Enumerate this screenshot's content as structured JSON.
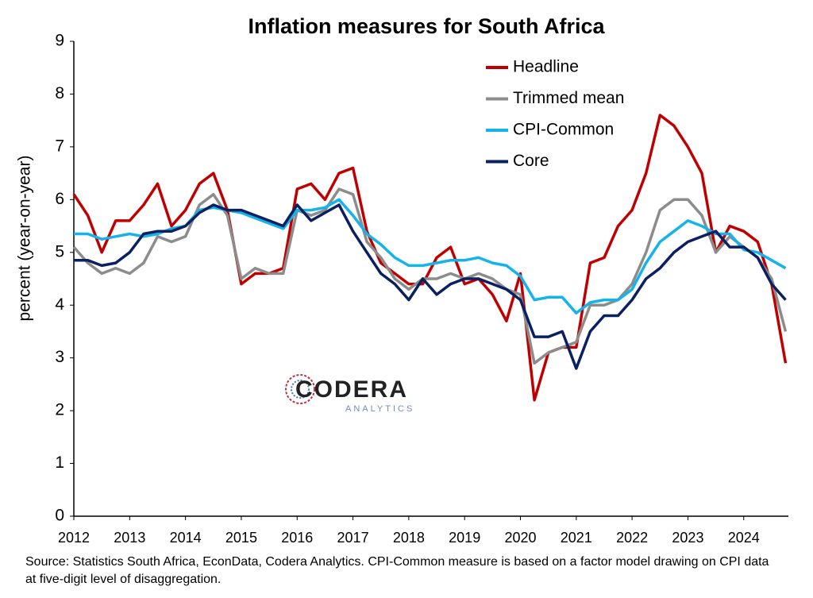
{
  "chart_data": {
    "type": "line",
    "title": "Inflation measures for South Africa",
    "y_label": "percent (year-on-year)",
    "source": "Source: Statistics South Africa, EconData, Codera Analytics. CPI-Common measure is based on a factor model drawing on CPI data at five-digit level of disaggregation.",
    "x": [
      2012,
      2012.25,
      2012.5,
      2012.75,
      2013,
      2013.25,
      2013.5,
      2013.75,
      2014,
      2014.25,
      2014.5,
      2014.75,
      2015,
      2015.25,
      2015.5,
      2015.75,
      2016,
      2016.25,
      2016.5,
      2016.75,
      2017,
      2017.25,
      2017.5,
      2017.75,
      2018,
      2018.25,
      2018.5,
      2018.75,
      2019,
      2019.25,
      2019.5,
      2019.75,
      2020,
      2020.25,
      2020.5,
      2020.75,
      2021,
      2021.25,
      2021.5,
      2021.75,
      2022,
      2022.25,
      2022.5,
      2022.75,
      2023,
      2023.25,
      2023.5,
      2023.75,
      2024,
      2024.25,
      2024.5,
      2024.75
    ],
    "series": [
      {
        "name": "Headline",
        "color": "#c00000",
        "values": [
          6.1,
          5.7,
          5.0,
          5.6,
          5.6,
          5.9,
          6.3,
          5.5,
          5.8,
          6.3,
          6.5,
          5.8,
          4.4,
          4.6,
          4.6,
          4.7,
          6.2,
          6.3,
          6.0,
          6.5,
          6.6,
          5.4,
          4.8,
          4.6,
          4.4,
          4.4,
          4.9,
          5.1,
          4.4,
          4.5,
          4.2,
          3.7,
          4.6,
          2.2,
          3.1,
          3.2,
          3.2,
          4.8,
          4.9,
          5.5,
          5.8,
          6.5,
          7.6,
          7.4,
          7.0,
          6.5,
          5.0,
          5.5,
          5.4,
          5.2,
          4.4,
          2.9
        ]
      },
      {
        "name": "Trimmed mean",
        "color": "#8c8c8c",
        "values": [
          5.1,
          4.8,
          4.6,
          4.7,
          4.6,
          4.8,
          5.3,
          5.2,
          5.3,
          5.9,
          6.1,
          5.7,
          4.5,
          4.7,
          4.6,
          4.6,
          5.8,
          5.7,
          5.8,
          6.2,
          6.1,
          5.2,
          4.9,
          4.5,
          4.3,
          4.5,
          4.5,
          4.6,
          4.5,
          4.6,
          4.5,
          4.3,
          4.2,
          2.9,
          3.1,
          3.2,
          3.3,
          4.0,
          4.0,
          4.1,
          4.4,
          5.0,
          5.8,
          6.0,
          6.0,
          5.7,
          5.0,
          5.3,
          5.1,
          4.9,
          4.5,
          3.5
        ]
      },
      {
        "name": "CPI-Common",
        "color": "#14b4eb",
        "values": [
          5.35,
          5.35,
          5.25,
          5.3,
          5.35,
          5.3,
          5.35,
          5.45,
          5.5,
          5.8,
          5.85,
          5.8,
          5.75,
          5.65,
          5.55,
          5.45,
          5.8,
          5.8,
          5.85,
          6.0,
          5.7,
          5.35,
          5.15,
          4.9,
          4.75,
          4.75,
          4.8,
          4.85,
          4.85,
          4.9,
          4.8,
          4.75,
          4.55,
          4.1,
          4.15,
          4.15,
          3.85,
          4.05,
          4.1,
          4.1,
          4.3,
          4.8,
          5.2,
          5.4,
          5.6,
          5.5,
          5.35,
          5.35,
          5.05,
          5.0,
          4.85,
          4.7
        ]
      },
      {
        "name": "Core",
        "color": "#0a2060",
        "values": [
          4.85,
          4.85,
          4.75,
          4.8,
          5.0,
          5.35,
          5.4,
          5.4,
          5.5,
          5.75,
          5.9,
          5.8,
          5.8,
          5.7,
          5.6,
          5.5,
          5.9,
          5.6,
          5.75,
          5.9,
          5.4,
          5.0,
          4.6,
          4.4,
          4.1,
          4.5,
          4.2,
          4.4,
          4.5,
          4.5,
          4.4,
          4.3,
          4.1,
          3.4,
          3.4,
          3.5,
          2.8,
          3.5,
          3.8,
          3.8,
          4.1,
          4.5,
          4.7,
          5.0,
          5.2,
          5.3,
          5.4,
          5.1,
          5.1,
          4.9,
          4.4,
          4.1
        ]
      }
    ],
    "xlim": [
      2012,
      2024.8
    ],
    "xticks": [
      2012,
      2013,
      2014,
      2015,
      2016,
      2017,
      2018,
      2019,
      2020,
      2021,
      2022,
      2023,
      2024
    ],
    "ylim": [
      0,
      9
    ],
    "yticks": [
      0,
      1,
      2,
      3,
      4,
      5,
      6,
      7,
      8,
      9
    ],
    "grid": false,
    "legend": "top-right"
  },
  "logo": {
    "name": "CODERA",
    "tagline": "ANALYTICS"
  }
}
